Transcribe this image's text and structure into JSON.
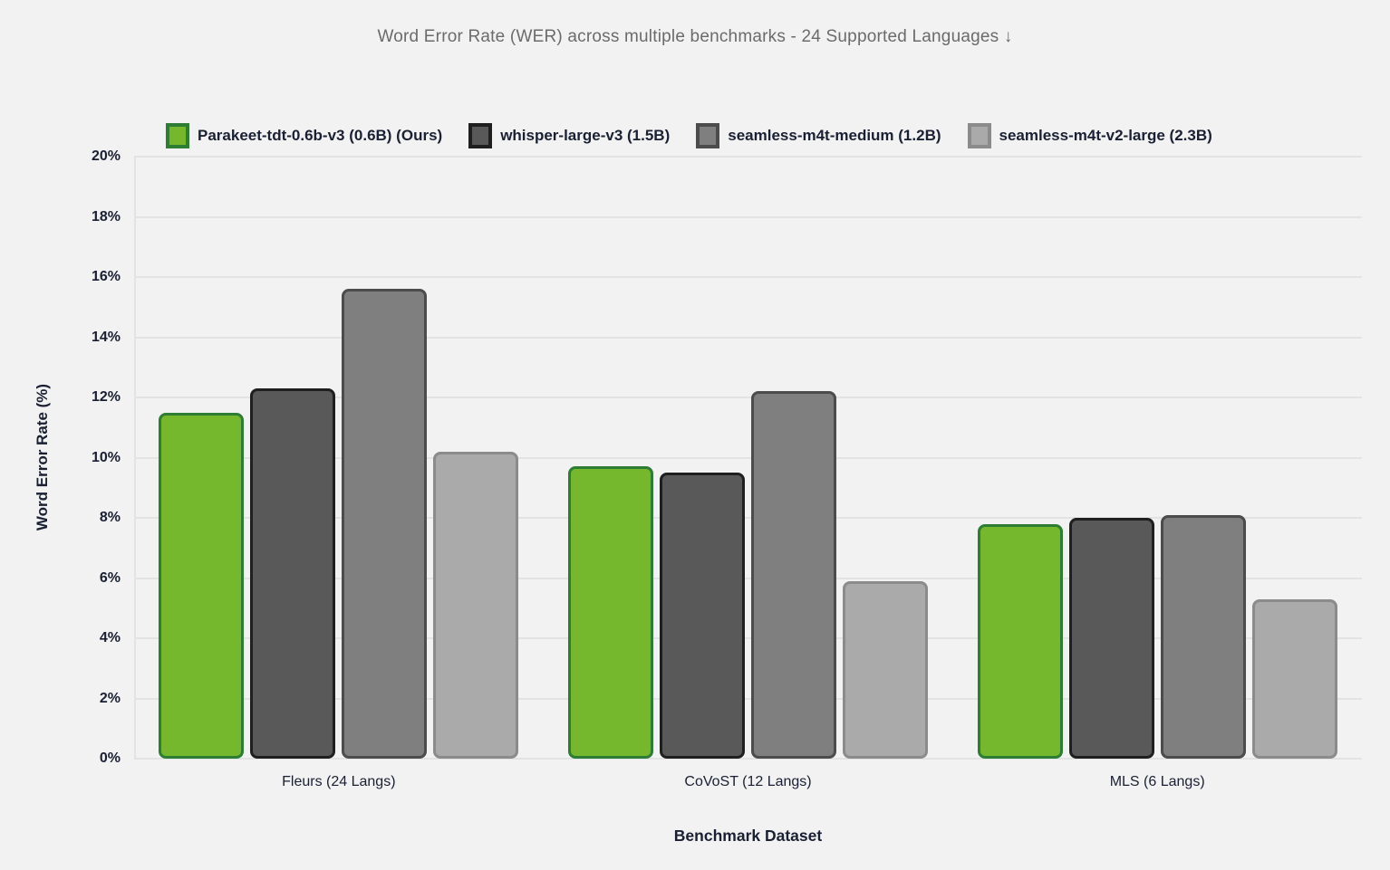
{
  "chart_data": {
    "type": "bar",
    "title": "Word Error Rate (WER) across multiple benchmarks - 24 Supported Languages ↓",
    "xlabel": "Benchmark Dataset",
    "ylabel": "Word Error Rate (%)",
    "categories": [
      "Fleurs (24 Langs)",
      "CoVoST (12 Langs)",
      "MLS (6 Langs)"
    ],
    "series": [
      {
        "name": "Parakeet-tdt-0.6b-v3 (0.6B) (Ours)",
        "values": [
          11.5,
          9.7,
          7.8
        ],
        "fill": "#75b82d",
        "stroke": "#2d7d35"
      },
      {
        "name": "whisper-large-v3 (1.5B)",
        "values": [
          12.3,
          9.5,
          8.0
        ],
        "fill": "#595959",
        "stroke": "#1f1f1f"
      },
      {
        "name": "seamless-m4t-medium (1.2B)",
        "values": [
          15.6,
          12.2,
          8.1
        ],
        "fill": "#7f7f7f",
        "stroke": "#4c4c4c"
      },
      {
        "name": "seamless-m4t-v2-large (2.3B)",
        "values": [
          10.2,
          5.9,
          5.3
        ],
        "fill": "#aaaaaa",
        "stroke": "#8b8b8b"
      }
    ],
    "ylim": [
      0,
      20
    ],
    "ytick_step": 2,
    "ytick_labels": [
      "0%",
      "2%",
      "4%",
      "6%",
      "8%",
      "10%",
      "12%",
      "14%",
      "16%",
      "18%",
      "20%"
    ],
    "grid": true,
    "legend_position": "top-left"
  },
  "colors": {
    "background": "#f2f2f2",
    "gridline": "#e3e3e3",
    "title_text": "#6b6b6b",
    "axis_text": "#1a2033",
    "accent_green": "#75b82d"
  }
}
